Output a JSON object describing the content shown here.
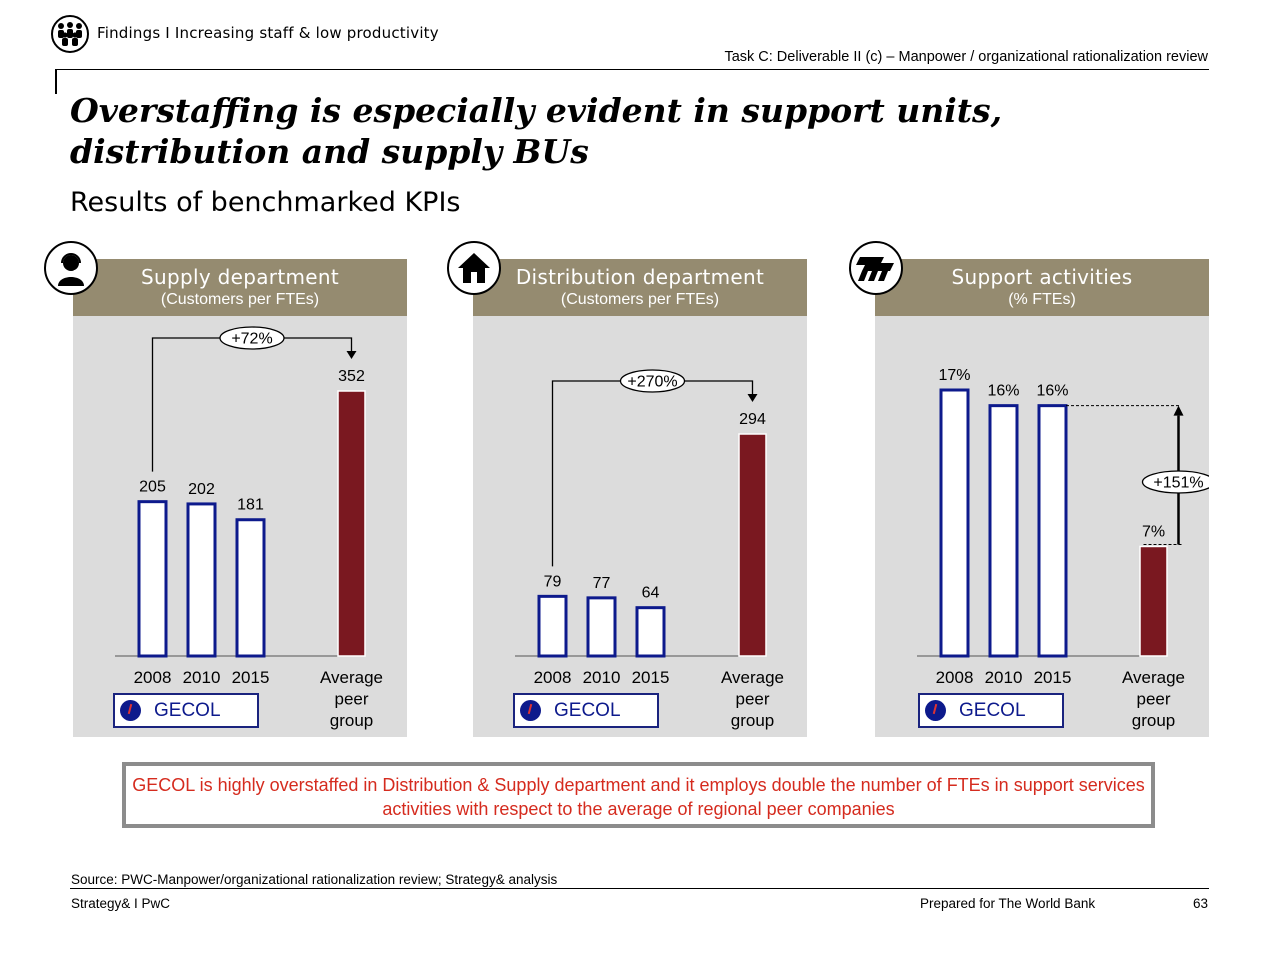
{
  "header": {
    "icon": "group-people-icon",
    "breadcrumb": "Findings I Increasing staff & low productivity",
    "task": "Task C: Deliverable II (c) – Manpower / organizational rationalization review"
  },
  "title": "Overstaffing is especially evident in support units, distribution and supply BUs",
  "subtitle": "Results of benchmarked KPIs",
  "colors": {
    "header_bar": "#958b70",
    "panel_bg": "#dcdcdc",
    "gecol_bar_border": "#0d1a8c",
    "peer_bar": "#7a1820",
    "callout_text": "#d52b1e"
  },
  "panels": [
    {
      "title": "Supply department",
      "unit": "(Customers per FTEs)",
      "icon": "customer-headset-icon",
      "gecol_label": "GECOL",
      "peer_label": [
        "Average",
        "peer",
        "group"
      ],
      "delta": "+72%"
    },
    {
      "title": "Distribution department",
      "unit": "(Customers per FTEs)",
      "icon": "house-icon",
      "gecol_label": "GECOL",
      "peer_label": [
        "Average",
        "peer",
        "group"
      ],
      "delta": "+270%"
    },
    {
      "title": "Support activities",
      "unit": "(% FTEs)",
      "icon": "support-gears-icon",
      "gecol_label": "GECOL",
      "peer_label": [
        "Average",
        "peer",
        "group"
      ],
      "delta": "+151%"
    }
  ],
  "chart_data": [
    {
      "type": "bar",
      "title": "Supply department",
      "subtitle": "(Customers per FTEs)",
      "categories": [
        "2008",
        "2010",
        "2015",
        "Average peer group"
      ],
      "values": [
        205,
        202,
        181,
        352
      ],
      "labels": [
        "205",
        "202",
        "181",
        "352"
      ],
      "annotation": "+72%"
    },
    {
      "type": "bar",
      "title": "Distribution department",
      "subtitle": "(Customers per FTEs)",
      "categories": [
        "2008",
        "2010",
        "2015",
        "Average peer group"
      ],
      "values": [
        79,
        77,
        64,
        294
      ],
      "labels": [
        "79",
        "77",
        "64",
        "294"
      ],
      "annotation": "+270%"
    },
    {
      "type": "bar",
      "title": "Support activities",
      "subtitle": "(% FTEs)",
      "categories": [
        "2008",
        "2010",
        "2015",
        "Average peer group"
      ],
      "values": [
        17,
        16,
        16,
        7
      ],
      "labels": [
        "17%",
        "16%",
        "16%",
        "7%"
      ],
      "annotation": "+151%"
    }
  ],
  "callout": "GECOL is highly overstaffed in Distribution & Supply department and it employs double the number of FTEs in support services activities with respect to the average of regional peer companies",
  "footer": {
    "source": "Source: PWC-Manpower/organizational rationalization review; Strategy& analysis",
    "left": "Strategy& I PwC",
    "middle": "Prepared for The World Bank",
    "page": "63"
  }
}
